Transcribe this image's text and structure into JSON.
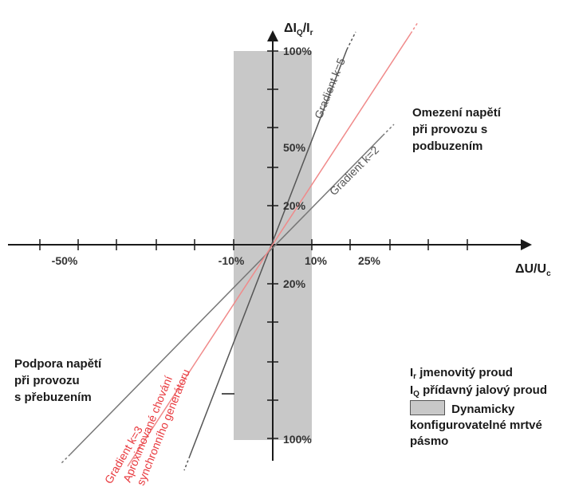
{
  "y_axis": {
    "base": "ΔI",
    "sub": "Q",
    "tail": "/I",
    "tail_sub": "r"
  },
  "x_axis": {
    "base": "ΔU/U",
    "sub": "c"
  },
  "x_ticks": {
    "neg50": "-50%",
    "neg10": "-10%",
    "pos10": "10%",
    "pos25": "25%"
  },
  "y_ticks": {
    "top100": "100%",
    "top50": "50%",
    "top20": "20%",
    "bot20": "20%",
    "bot100": "100%"
  },
  "line_labels": {
    "k5": "Gradient k=5",
    "k2": "Gradient k=2",
    "k3": "Gradient k=3",
    "sync_1": "Aproximované chování",
    "sync_2": "synchronního generátoru"
  },
  "notes": {
    "under": [
      "Omezení napětí",
      "při provozu s",
      "podbuzením"
    ],
    "over": [
      "Podpora napětí",
      "při provozu",
      "s přebuzením"
    ]
  },
  "legend": {
    "ir_sym": "I",
    "ir_sub": "r",
    "ir_text": "jmenovitý proud",
    "iq_sym": "I",
    "iq_sub": "Q",
    "iq_text": "přídavný jalový proud",
    "band_1": "Dynamicky",
    "band_2": "konfigurovatelné mrtvé",
    "band_3": "pásmo"
  },
  "colors": {
    "band": "#c8c8c8",
    "axis": "#1a1a1a",
    "line": "#555555",
    "red": "#e8383d",
    "redsoft": "#f08a8a"
  }
}
